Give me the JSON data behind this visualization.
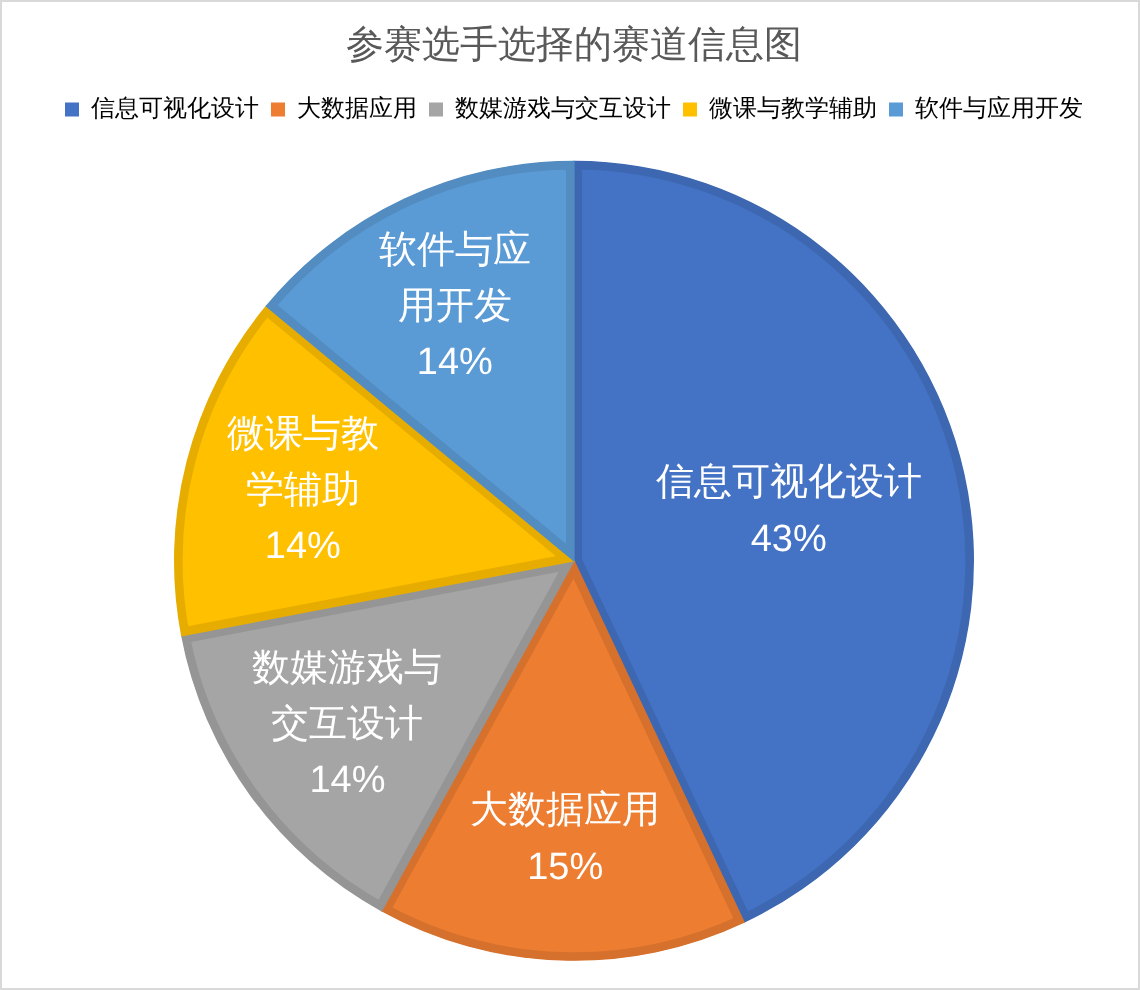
{
  "chart_data": {
    "type": "pie",
    "title": "参赛选手选择的赛道信息图",
    "categories": [
      "信息可视化设计",
      "大数据应用",
      "数媒游戏与交互设计",
      "微课与教学辅助",
      "软件与应用开发"
    ],
    "values": [
      43,
      15,
      14,
      14,
      14
    ],
    "colors": [
      "#4472c4",
      "#ed7d31",
      "#a5a5a5",
      "#ffc000",
      "#5b9bd5"
    ],
    "value_labels": [
      "43%",
      "15%",
      "14%",
      "14%",
      "14%"
    ],
    "legend": "top"
  }
}
